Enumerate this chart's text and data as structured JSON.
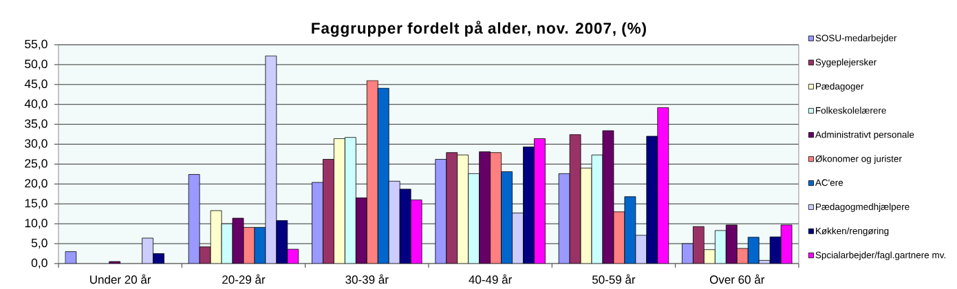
{
  "chart_data": {
    "type": "bar",
    "title": "Faggrupper fordelt på alder, nov. 2007, (%)",
    "categories": [
      "Under 20 år",
      "20-29 år",
      "30-39 år",
      "40-49 år",
      "50-59 år",
      "Over 60 år"
    ],
    "series": [
      {
        "name": "SOSU-medarbejder",
        "color": "#9999ff",
        "values": [
          3.0,
          22.4,
          20.4,
          26.2,
          22.6,
          5.0
        ]
      },
      {
        "name": "Sygeplejersker",
        "color": "#993366",
        "values": [
          null,
          4.2,
          26.2,
          27.9,
          32.4,
          9.3
        ]
      },
      {
        "name": "Pædagoger",
        "color": "#ffffcc",
        "values": [
          null,
          13.3,
          31.4,
          27.3,
          24.0,
          3.5
        ]
      },
      {
        "name": "Folkeskolelærere",
        "color": "#ccffff",
        "values": [
          null,
          10.0,
          31.7,
          22.6,
          27.3,
          8.3
        ]
      },
      {
        "name": "Administrativt personale",
        "color": "#660066",
        "values": [
          0.5,
          11.4,
          16.5,
          28.1,
          33.4,
          9.7
        ]
      },
      {
        "name": "Økonomer og jurister",
        "color": "#ff8080",
        "values": [
          null,
          9.1,
          46.0,
          27.9,
          13.0,
          3.8
        ]
      },
      {
        "name": "AC'ere",
        "color": "#0066cc",
        "values": [
          null,
          9.1,
          44.1,
          23.1,
          16.8,
          6.6
        ]
      },
      {
        "name": "Pædagogmedhjælpere",
        "color": "#ccccff",
        "values": [
          6.4,
          52.2,
          20.7,
          12.7,
          7.1,
          0.8
        ]
      },
      {
        "name": "Køkken/rengøring",
        "color": "#000080",
        "values": [
          2.5,
          10.8,
          18.7,
          29.3,
          32.0,
          6.7
        ]
      },
      {
        "name": "Spcialarbejder/fagl.gartnere mv.",
        "color": "#ff00ff",
        "values": [
          null,
          3.6,
          16.0,
          31.4,
          39.2,
          9.7
        ]
      }
    ],
    "ylim": [
      0,
      55
    ],
    "yticks": [
      {
        "value": 0,
        "label": "0,0"
      },
      {
        "value": 5,
        "label": "5,0"
      },
      {
        "value": 10,
        "label": "10,0"
      },
      {
        "value": 15,
        "label": "15,0"
      },
      {
        "value": 20,
        "label": "20,0"
      },
      {
        "value": 25,
        "label": "25,0"
      },
      {
        "value": 30,
        "label": "30,0"
      },
      {
        "value": 35,
        "label": "35,0"
      },
      {
        "value": 40,
        "label": "40,0"
      },
      {
        "value": 45,
        "label": "45,0"
      },
      {
        "value": 50,
        "label": "50,0"
      },
      {
        "value": 55,
        "label": "55,0"
      }
    ],
    "grid": "y",
    "legend": "right"
  }
}
